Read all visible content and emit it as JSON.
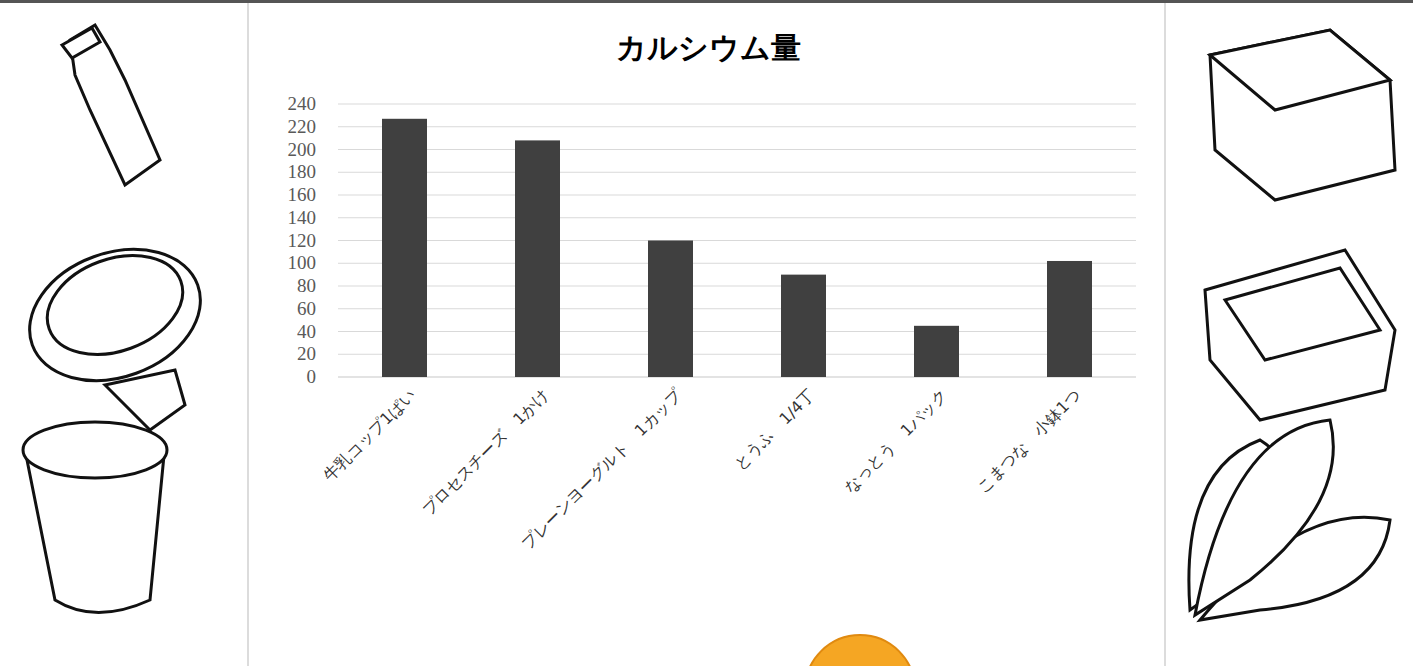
{
  "chart_data": {
    "type": "bar",
    "title": "カルシウム量",
    "categories": [
      "牛乳コップ1ぱい",
      "プロセスチーズ　1かけ",
      "プレーンヨーグルト　1カップ",
      "とうふ　1/4丁",
      "なっとう　1パック",
      "こまつな　小鉢1つ"
    ],
    "values": [
      227,
      208,
      120,
      90,
      45,
      102
    ],
    "color": "#404040",
    "ylim": [
      0,
      240
    ],
    "yticks": [
      0,
      20,
      40,
      60,
      80,
      100,
      120,
      140,
      160,
      180,
      200,
      220,
      240
    ],
    "grid": true
  }
}
